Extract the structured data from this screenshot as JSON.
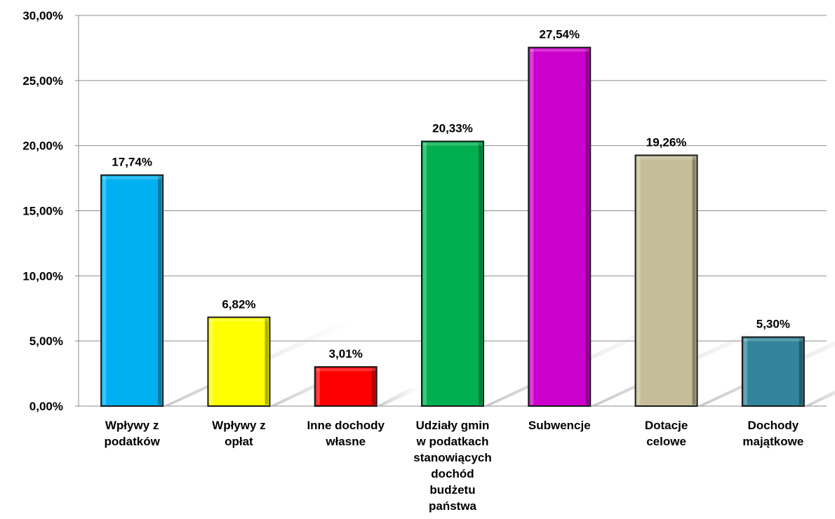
{
  "chart_data": {
    "type": "bar",
    "categories": [
      [
        "Wpływy z",
        "podatków"
      ],
      [
        "Wpływy z",
        "opłat"
      ],
      [
        "Inne dochody",
        "własne"
      ],
      [
        "Udziały gmin",
        "w podatkach",
        "stanowiących",
        "dochód",
        "budżetu",
        "państwa"
      ],
      [
        "Subwencje"
      ],
      [
        "Dotacje",
        "celowe"
      ],
      [
        "Dochody",
        "majątkowe"
      ]
    ],
    "values": [
      17.74,
      6.82,
      3.01,
      20.33,
      27.54,
      19.26,
      5.3
    ],
    "data_labels": [
      "17,74%",
      "6,82%",
      "3,01%",
      "20,33%",
      "27,54%",
      "19,26%",
      "5,30%"
    ],
    "colors": [
      "#00b0f0",
      "#ffff00",
      "#ff0000",
      "#00b050",
      "#cc00cc",
      "#c4bd97",
      "#31849b"
    ],
    "ylim": [
      0,
      30
    ],
    "yticks": [
      0,
      5,
      10,
      15,
      20,
      25,
      30
    ],
    "ytick_labels": [
      "0,00%",
      "5,00%",
      "10,00%",
      "15,00%",
      "20,00%",
      "25,00%",
      "30,00%"
    ],
    "grid": true,
    "title": "",
    "xlabel": "",
    "ylabel": ""
  }
}
